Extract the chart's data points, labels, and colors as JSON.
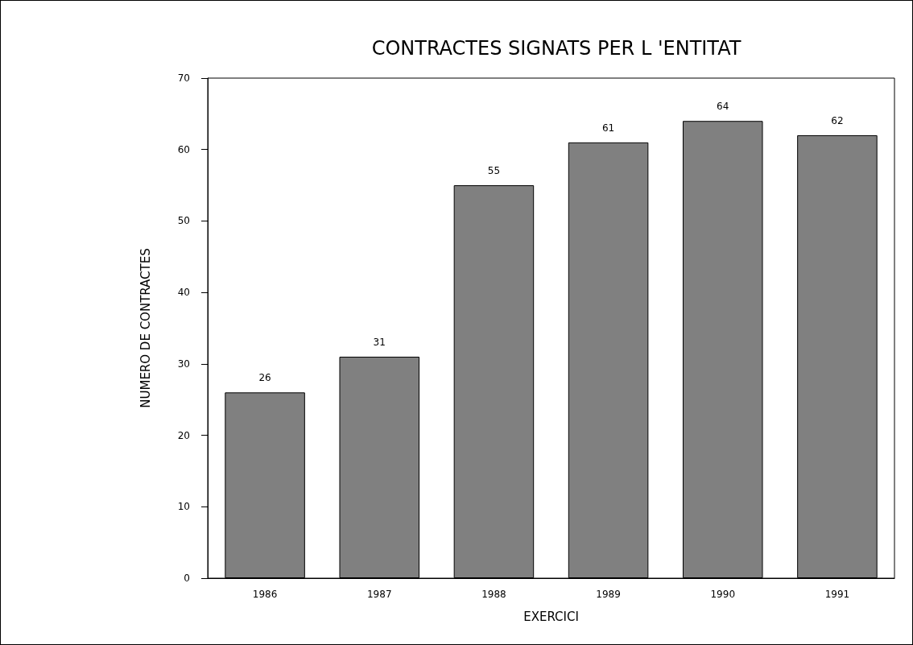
{
  "chart_data": {
    "type": "bar",
    "title": "CONTRACTES SIGNATS PER L 'ENTITAT",
    "xlabel": "EXERCICI",
    "ylabel": "NUMERO DE CONTRACTES",
    "categories": [
      "1986",
      "1987",
      "1988",
      "1989",
      "1990",
      "1991"
    ],
    "values": [
      26,
      31,
      55,
      61,
      64,
      62
    ],
    "color": "#808080",
    "ylim": [
      0,
      70
    ],
    "yticks": [
      0,
      10,
      20,
      30,
      40,
      50,
      60,
      70
    ],
    "data_labels": true
  }
}
